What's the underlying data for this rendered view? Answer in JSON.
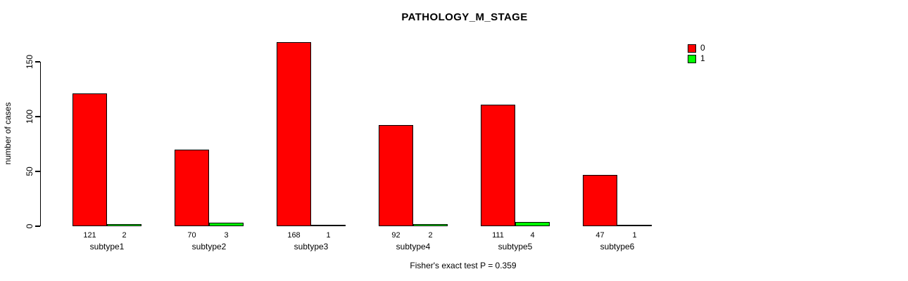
{
  "chart_data": {
    "type": "bar",
    "title": "PATHOLOGY_M_STAGE",
    "ylabel": "number of cases",
    "xlabel": "",
    "footer": "Fisher's exact test P = 0.359",
    "categories": [
      "subtype1",
      "subtype2",
      "subtype3",
      "subtype4",
      "subtype5",
      "subtype6"
    ],
    "series": [
      {
        "name": "0",
        "color": "#ff0000",
        "values": [
          121,
          70,
          168,
          92,
          111,
          47
        ]
      },
      {
        "name": "1",
        "color": "#00ff00",
        "values": [
          2,
          3,
          1,
          2,
          4,
          1
        ]
      }
    ],
    "value_labels": {
      "series_0": [
        "121",
        "70",
        "168",
        "92",
        "111",
        "47"
      ],
      "series_1": [
        "2",
        "3",
        "1",
        "2",
        "4",
        "1"
      ]
    },
    "yticks": [
      0,
      50,
      100,
      150
    ],
    "ylim": [
      0,
      170
    ],
    "grid": false,
    "legend_position": "top-right",
    "bar_border_color": "#000000",
    "background_color": "#ffffff",
    "show_value_labels": true
  }
}
